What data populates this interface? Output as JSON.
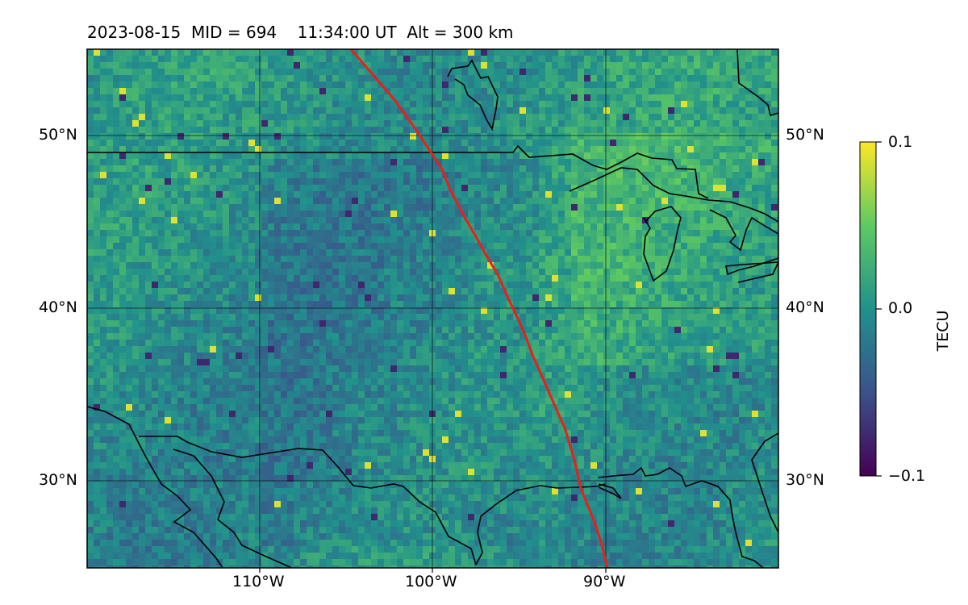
{
  "title": {
    "date": "2023-08-15",
    "mid": "MID = 694",
    "time": "11:34:00  UT",
    "alt": "Alt = 300 km"
  },
  "map": {
    "lon_range": [
      -119,
      -79
    ],
    "lat_range": [
      25,
      55
    ],
    "grid_lon": [
      -110,
      -100,
      -90
    ],
    "grid_lat": [
      30,
      40,
      50
    ],
    "lon_labels": [
      "110°W",
      "100°W",
      "90°W"
    ],
    "lat_labels": [
      "30°N",
      "40°N",
      "50°N"
    ],
    "track_color": "#e8201a",
    "coast_color": "#000000"
  },
  "colorbar": {
    "label": "TECU",
    "ticks": [
      "0.1",
      "0.0",
      "−0.1"
    ],
    "vmin": -0.1,
    "vmax": 0.1,
    "colormap": "viridis"
  }
}
